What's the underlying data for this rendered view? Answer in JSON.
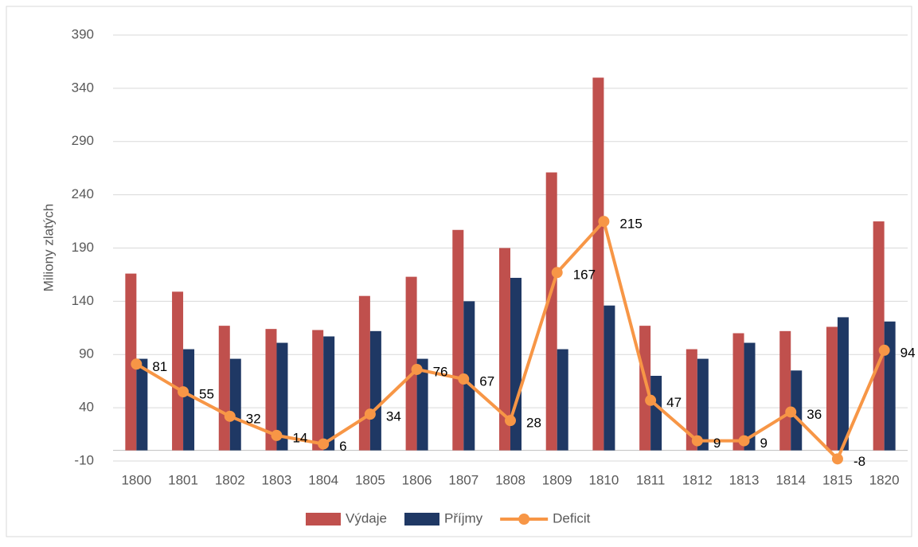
{
  "chart_data": {
    "type": "bar-line",
    "y_label": "Miliony zlatých",
    "categories": [
      "1800",
      "1801",
      "1802",
      "1803",
      "1804",
      "1805",
      "1806",
      "1807",
      "1808",
      "1809",
      "1810",
      "1811",
      "1812",
      "1813",
      "1814",
      "1815",
      "1820"
    ],
    "series": [
      {
        "name": "Výdaje",
        "type": "bar",
        "color": "#c0504d",
        "values": [
          166,
          149,
          117,
          114,
          113,
          145,
          163,
          207,
          190,
          261,
          350,
          117,
          95,
          110,
          112,
          116,
          215
        ]
      },
      {
        "name": "Příjmy",
        "type": "bar",
        "color": "#1f3864",
        "values": [
          86,
          95,
          86,
          101,
          107,
          112,
          86,
          140,
          162,
          95,
          136,
          70,
          86,
          101,
          75,
          125,
          121
        ]
      },
      {
        "name": "Deficit",
        "type": "line",
        "color": "#f79646",
        "values": [
          81,
          55,
          32,
          14,
          6,
          34,
          76,
          67,
          28,
          167,
          215,
          47,
          9,
          9,
          36,
          -8,
          94
        ],
        "data_labels": true
      }
    ],
    "ylim": [
      -10,
      390
    ],
    "yticks": [
      -10,
      40,
      90,
      140,
      190,
      240,
      290,
      340,
      390
    ],
    "grid": true,
    "legend": "bottom"
  }
}
